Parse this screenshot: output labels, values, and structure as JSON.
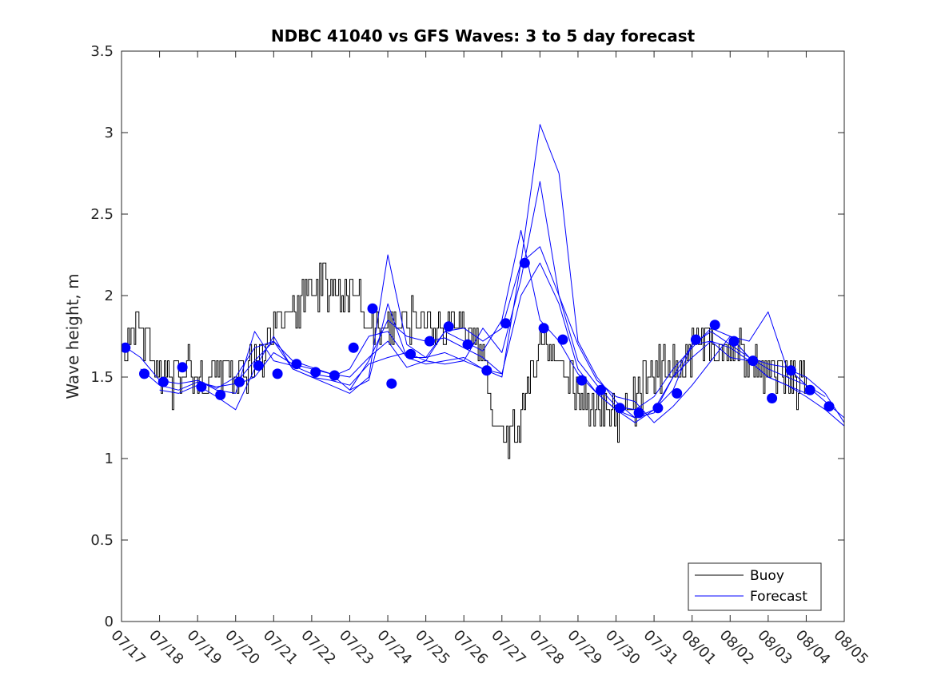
{
  "chart_data": {
    "type": "line",
    "title": "NDBC 41040 vs GFS Waves: 3 to 5 day forecast",
    "xlabel": "",
    "ylabel": "Wave height, m",
    "ylim": [
      0,
      3.5
    ],
    "yticks": [
      "0",
      "0.5",
      "1",
      "1.5",
      "2",
      "2.5",
      "3",
      "3.5"
    ],
    "xlim_day": [
      0,
      19
    ],
    "xticks": [
      "07/17",
      "07/18",
      "07/19",
      "07/20",
      "07/21",
      "07/22",
      "07/23",
      "07/24",
      "07/25",
      "07/26",
      "07/27",
      "07/28",
      "07/29",
      "07/30",
      "07/31",
      "08/01",
      "08/02",
      "08/03",
      "08/04",
      "08/05"
    ],
    "grid": false,
    "legend": {
      "placement": "bottom-right",
      "entries": [
        {
          "label": "Buoy",
          "color": "#000000"
        },
        {
          "label": "Forecast",
          "color": "#0000ff"
        }
      ]
    },
    "buoy_anchors": [
      [
        0.0,
        1.75
      ],
      [
        0.3,
        1.8
      ],
      [
        0.6,
        1.7
      ],
      [
        1.0,
        1.55
      ],
      [
        1.3,
        1.45
      ],
      [
        1.6,
        1.55
      ],
      [
        2.0,
        1.5
      ],
      [
        2.4,
        1.5
      ],
      [
        2.8,
        1.55
      ],
      [
        3.2,
        1.5
      ],
      [
        3.6,
        1.6
      ],
      [
        3.9,
        1.75
      ],
      [
        4.3,
        1.85
      ],
      [
        4.6,
        1.9
      ],
      [
        4.8,
        2.0
      ],
      [
        5.0,
        2.1
      ],
      [
        5.4,
        2.05
      ],
      [
        5.8,
        2.0
      ],
      [
        6.1,
        2.05
      ],
      [
        6.4,
        1.9
      ],
      [
        6.8,
        1.75
      ],
      [
        7.2,
        1.8
      ],
      [
        7.6,
        1.85
      ],
      [
        8.0,
        1.85
      ],
      [
        8.4,
        1.8
      ],
      [
        8.8,
        1.85
      ],
      [
        9.2,
        1.75
      ],
      [
        9.5,
        1.6
      ],
      [
        9.7,
        1.3
      ],
      [
        9.9,
        1.15
      ],
      [
        10.2,
        1.1
      ],
      [
        10.4,
        1.2
      ],
      [
        10.7,
        1.5
      ],
      [
        11.0,
        1.7
      ],
      [
        11.3,
        1.65
      ],
      [
        11.6,
        1.5
      ],
      [
        12.0,
        1.4
      ],
      [
        12.3,
        1.3
      ],
      [
        12.6,
        1.3
      ],
      [
        13.0,
        1.25
      ],
      [
        13.3,
        1.3
      ],
      [
        13.6,
        1.4
      ],
      [
        13.9,
        1.5
      ],
      [
        14.2,
        1.55
      ],
      [
        14.6,
        1.6
      ],
      [
        15.0,
        1.65
      ],
      [
        15.4,
        1.7
      ],
      [
        15.8,
        1.7
      ],
      [
        16.2,
        1.65
      ],
      [
        16.6,
        1.55
      ],
      [
        17.0,
        1.55
      ],
      [
        17.4,
        1.5
      ],
      [
        17.8,
        1.45
      ],
      [
        18.0,
        1.42
      ]
    ],
    "forecast_points": {
      "day": [
        0.1,
        0.6,
        1.1,
        1.6,
        2.1,
        2.6,
        3.1,
        3.6,
        4.1,
        4.6,
        5.1,
        5.6,
        6.1,
        6.6,
        7.1,
        7.6,
        8.1,
        8.6,
        9.1,
        9.6,
        10.1,
        10.6,
        11.1,
        11.6,
        12.1,
        12.6,
        13.1,
        13.6,
        14.1,
        14.6,
        15.1,
        15.6,
        16.1,
        16.6,
        17.1,
        17.6,
        18.1,
        18.6
      ],
      "height": [
        1.68,
        1.52,
        1.47,
        1.56,
        1.44,
        1.39,
        1.47,
        1.57,
        1.52,
        1.58,
        1.53,
        1.51,
        1.68,
        1.92,
        1.46,
        1.64,
        1.72,
        1.81,
        1.7,
        1.54,
        1.83,
        2.2,
        1.8,
        1.73,
        1.48,
        1.42,
        1.31,
        1.28,
        1.31,
        1.4,
        1.73,
        1.82,
        1.72,
        1.6,
        1.37,
        1.54,
        1.42,
        1.32
      ]
    },
    "forecast_runs": [
      {
        "day": [
          0,
          0.5,
          1.0,
          1.5,
          2.0,
          2.5,
          3.0,
          3.5,
          4.0,
          4.5,
          5.0,
          5.5,
          6.0,
          6.5,
          7.0,
          7.5,
          8.0,
          8.5,
          9.0,
          9.5,
          10.0,
          10.5,
          11.0,
          11.5,
          12.0,
          12.5,
          13.0,
          13.5,
          14.0,
          14.5,
          15.0,
          15.5,
          16.0,
          16.5,
          17.0,
          17.5,
          18.0,
          18.5,
          19.0
        ],
        "height": [
          1.7,
          1.62,
          1.48,
          1.46,
          1.48,
          1.42,
          1.4,
          1.78,
          1.6,
          1.57,
          1.52,
          1.5,
          1.55,
          1.75,
          1.78,
          1.62,
          1.62,
          1.78,
          1.72,
          1.66,
          1.85,
          2.4,
          1.85,
          1.72,
          1.52,
          1.4,
          1.3,
          1.25,
          1.3,
          1.42,
          1.7,
          1.78,
          1.7,
          1.62,
          1.58,
          1.56,
          1.45,
          1.35,
          1.25
        ]
      },
      {
        "day": [
          0.5,
          1.0,
          1.5,
          2.0,
          2.5,
          3.0,
          3.5,
          4.0,
          4.5,
          5.0,
          5.5,
          6.0,
          6.5,
          7.0,
          7.5,
          8.0,
          8.5,
          9.0,
          9.5,
          10.0,
          10.5,
          11.0,
          11.5,
          12.0,
          12.5,
          13.0,
          13.5,
          14.0,
          14.5,
          15.0,
          15.5,
          16.0,
          16.5,
          17.0,
          17.5,
          18.0,
          18.5,
          19.0
        ],
        "height": [
          1.55,
          1.45,
          1.42,
          1.47,
          1.44,
          1.46,
          1.6,
          1.72,
          1.55,
          1.5,
          1.48,
          1.45,
          1.58,
          1.62,
          1.65,
          1.6,
          1.58,
          1.6,
          1.8,
          1.65,
          2.1,
          2.7,
          2.0,
          1.7,
          1.48,
          1.38,
          1.35,
          1.22,
          1.32,
          1.45,
          1.6,
          1.75,
          1.72,
          1.9,
          1.55,
          1.5,
          1.4,
          1.22
        ]
      },
      {
        "day": [
          1.0,
          1.5,
          2.0,
          2.5,
          3.0,
          3.5,
          4.0,
          4.5,
          5.0,
          5.5,
          6.0,
          6.5,
          7.0,
          7.5,
          8.0,
          8.5,
          9.0,
          9.5,
          10.0,
          10.5,
          11.0,
          11.5,
          12.0,
          12.5,
          13.0,
          13.5,
          14.0,
          14.5,
          15.0,
          15.5,
          16.0,
          16.5,
          17.0,
          17.5,
          18.0,
          18.5,
          19.0
        ],
        "height": [
          1.42,
          1.4,
          1.45,
          1.38,
          1.3,
          1.55,
          1.75,
          1.55,
          1.5,
          1.45,
          1.4,
          1.5,
          2.25,
          1.7,
          1.62,
          1.65,
          1.6,
          1.55,
          1.5,
          2.2,
          3.05,
          2.75,
          1.72,
          1.5,
          1.35,
          1.25,
          1.28,
          1.5,
          1.7,
          1.72,
          1.62,
          1.6,
          1.5,
          1.45,
          1.38,
          1.3,
          1.2
        ]
      },
      {
        "day": [
          2.0,
          2.5,
          3.0,
          3.5,
          4.0,
          4.5,
          5.0,
          5.5,
          6.0,
          6.5,
          7.0,
          7.5,
          8.0,
          8.5,
          9.0,
          9.5,
          10.0,
          10.5,
          11.0,
          11.5,
          12.0,
          12.5,
          13.0,
          13.5,
          14.0,
          14.5,
          15.0,
          15.5,
          16.0,
          16.5,
          17.0,
          17.5,
          18.0,
          18.5
        ],
        "height": [
          1.48,
          1.43,
          1.5,
          1.68,
          1.72,
          1.6,
          1.56,
          1.52,
          1.5,
          1.62,
          1.72,
          1.56,
          1.6,
          1.78,
          1.8,
          1.72,
          1.8,
          2.2,
          2.3,
          2.0,
          1.6,
          1.45,
          1.32,
          1.3,
          1.38,
          1.55,
          1.68,
          1.8,
          1.75,
          1.62,
          1.55,
          1.5,
          1.45,
          1.38
        ]
      },
      {
        "day": [
          3.0,
          3.5,
          4.0,
          4.5,
          5.0,
          5.5,
          6.0,
          6.5,
          7.0,
          7.5,
          8.0,
          8.5,
          9.0,
          9.5,
          10.0,
          10.5,
          11.0,
          11.5,
          12.0,
          12.5,
          13.0,
          13.5,
          14.0,
          14.5,
          15.0,
          15.5,
          16.0,
          16.5,
          17.0,
          17.5,
          18.0
        ],
        "height": [
          1.45,
          1.5,
          1.65,
          1.58,
          1.55,
          1.52,
          1.42,
          1.48,
          1.95,
          1.62,
          1.58,
          1.6,
          1.62,
          1.55,
          1.52,
          2.0,
          2.2,
          1.95,
          1.55,
          1.4,
          1.3,
          1.22,
          1.3,
          1.5,
          1.62,
          1.72,
          1.68,
          1.6,
          1.5,
          1.45,
          1.4
        ]
      },
      {
        "day": [
          6.0,
          6.5,
          7.0,
          7.5,
          8.0,
          8.5,
          9.0,
          9.5,
          10.0
        ],
        "height": [
          1.42,
          1.6,
          1.85,
          1.75,
          1.72,
          1.74,
          1.68,
          1.62,
          1.52
        ]
      }
    ]
  }
}
